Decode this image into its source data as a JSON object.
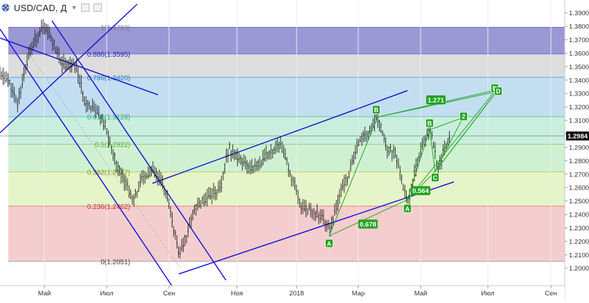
{
  "toolbar": {
    "symbol": "USD/CAD, Д",
    "icons": [
      "currency-flag-icon",
      "chevron-down-icon",
      "settings-icon",
      "close-icon"
    ]
  },
  "chart_data": {
    "type": "bar",
    "subtype": "ohlc",
    "x_axis_labels": [
      "Май",
      "Июл",
      "Сен",
      "Ноя",
      "2018",
      "Мар",
      "Май",
      "Июл",
      "Сен"
    ],
    "y_axis_ticks": [
      "1.2000",
      "1.2100",
      "1.2200",
      "1.2300",
      "1.2400",
      "1.2500",
      "1.2600",
      "1.2700",
      "1.2800",
      "1.2900",
      "1.3000",
      "1.3100",
      "1.3200",
      "1.3300",
      "1.3400",
      "1.3500",
      "1.3600",
      "1.3700",
      "1.3800",
      "1.3900"
    ],
    "ylim": [
      1.195,
      1.395
    ],
    "last_price": "1.2984",
    "last_price_value": 1.2984,
    "fib_levels": [
      {
        "label": "1(1.3793)",
        "value": 1.3793
      },
      {
        "label": "0.886(1.3595)",
        "value": 1.3595
      },
      {
        "label": "0.786(1.3420)",
        "value": 1.342
      },
      {
        "label": "0.618(1.3128)",
        "value": 1.3128
      },
      {
        "label": "0.5(1.2922)",
        "value": 1.2922
      },
      {
        "label": "0.382(1.2717)",
        "value": 1.2717
      },
      {
        "label": "0.236(1.2462)",
        "value": 1.2462
      },
      {
        "label": "0(1.2051)",
        "value": 1.2051
      }
    ],
    "harmonic_points": [
      {
        "label": "A",
        "value": 1.224
      },
      {
        "label": "B",
        "value": 1.3125
      },
      {
        "label": "A",
        "value": 1.251
      },
      {
        "label": "B",
        "value": 1.303
      },
      {
        "label": "C",
        "value": 1.272
      },
      {
        "label": "2",
        "value": 1.312
      },
      {
        "label": "D",
        "value": 1.331
      },
      {
        "label": "D",
        "value": 1.333
      }
    ],
    "ratio_labels": [
      "1.271",
      "0.564",
      "0.678"
    ],
    "colors": {
      "fib_band_top": "#8b86cf",
      "fib_band_2": "#d9d9d9",
      "fib_band_3": "#bcdaf0",
      "fib_band_4": "#c3ecd9",
      "fib_band_5": "#cbefcc",
      "fib_band_6": "#e3f3c3",
      "fib_band_7": "#f3c9c9",
      "channel": "#1515d6",
      "pattern": "#23a323",
      "price": "#1c1c1c"
    }
  }
}
